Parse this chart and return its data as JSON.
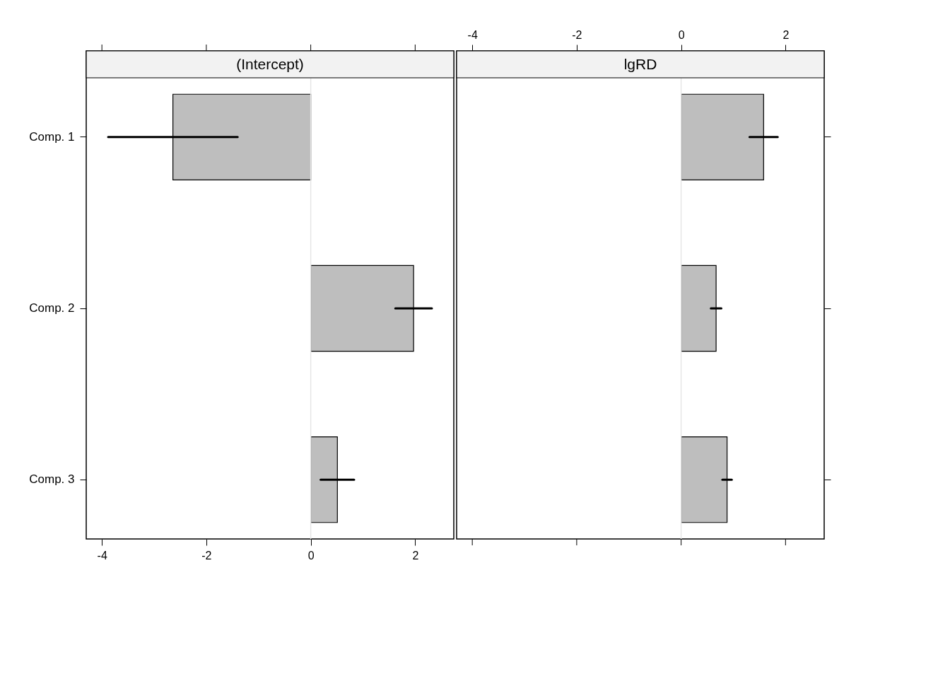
{
  "chart_data": [
    {
      "type": "bar",
      "orientation": "horizontal",
      "title": "(Intercept)",
      "categories": [
        "Comp. 1",
        "Comp. 2",
        "Comp. 3"
      ],
      "values": [
        -2.64,
        1.97,
        0.51
      ],
      "errors": [
        1.24,
        0.35,
        0.32
      ],
      "color": "#bebebe",
      "xlim": [
        -4.3,
        2.74
      ],
      "xticks": [
        -4,
        -2,
        0,
        2
      ],
      "grid": false,
      "ref_lines": [
        {
          "axis": "x",
          "value": 0,
          "color": "#e6e6e6"
        }
      ]
    },
    {
      "type": "bar",
      "orientation": "horizontal",
      "title": "lgRD",
      "categories": [
        null,
        null,
        null
      ],
      "values": [
        1.58,
        0.67,
        0.88
      ],
      "errors": [
        0.27,
        0.1,
        0.09
      ],
      "color": "#bebebe",
      "xlim": [
        -4.3,
        2.74
      ],
      "xticks": [
        -4,
        -2,
        0,
        2
      ],
      "grid": false,
      "tick_labels": "x",
      "ref_lines": [
        {
          "axis": "x",
          "value": 0,
          "color": "#e6e6e6"
        }
      ]
    }
  ]
}
